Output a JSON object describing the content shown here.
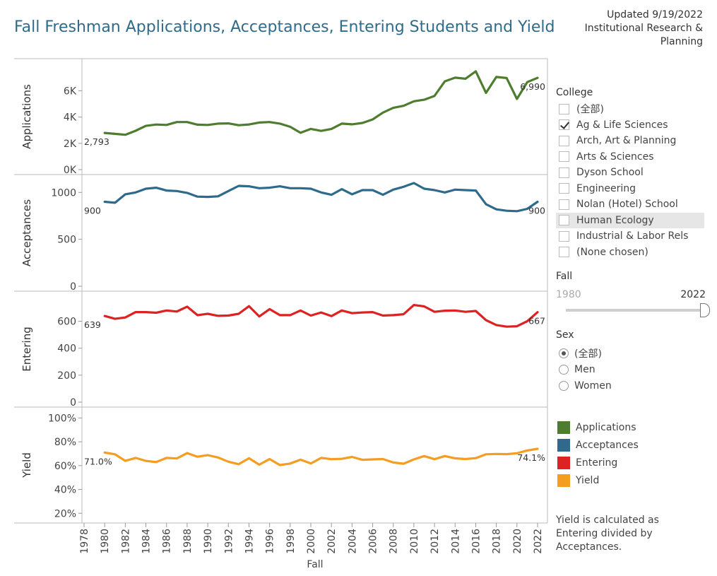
{
  "header": {
    "title": "Fall Freshman Applications, Acceptances, Entering Students and Yield",
    "updated_lines": [
      "Updated 9/19/2022",
      "Institutional Research &",
      "Planning"
    ]
  },
  "filters": {
    "college": {
      "label": "College",
      "options": [
        {
          "label": "(全部)",
          "checked": false
        },
        {
          "label": "Ag & Life Sciences",
          "checked": true
        },
        {
          "label": "Arch, Art & Planning",
          "checked": false
        },
        {
          "label": "Arts & Sciences",
          "checked": false
        },
        {
          "label": "Dyson School",
          "checked": false
        },
        {
          "label": "Engineering",
          "checked": false
        },
        {
          "label": "Nolan (Hotel) School",
          "checked": false
        },
        {
          "label": "Human Ecology",
          "checked": false,
          "hover": true
        },
        {
          "label": "Industrial & Labor Rels",
          "checked": false
        },
        {
          "label": "(None chosen)",
          "checked": false
        }
      ]
    },
    "fall": {
      "label": "Fall",
      "min_label": "1980",
      "max_label": "2022",
      "value": 1
    },
    "sex": {
      "label": "Sex",
      "options": [
        {
          "label": "(全部)",
          "selected": true
        },
        {
          "label": "Men",
          "selected": false
        },
        {
          "label": "Women",
          "selected": false
        }
      ]
    }
  },
  "legend": {
    "items": [
      {
        "label": "Applications",
        "color": "#4e7d2f"
      },
      {
        "label": "Acceptances",
        "color": "#2e6a8c"
      },
      {
        "label": "Entering",
        "color": "#dd2222"
      },
      {
        "label": "Yield",
        "color": "#f49d20"
      }
    ]
  },
  "note": "Yield is calculated as Entering divided by Acceptances.",
  "chart_data": {
    "type": "line",
    "x_label": "Fall",
    "x_ticks": [
      "1978",
      "1980",
      "1982",
      "1984",
      "1986",
      "1988",
      "1990",
      "1992",
      "1994",
      "1996",
      "1998",
      "2000",
      "2002",
      "2004",
      "2006",
      "2008",
      "2010",
      "2012",
      "2014",
      "2016",
      "2018",
      "2020",
      "2022"
    ],
    "x_range": [
      1978,
      2022
    ],
    "x": [
      1980,
      1981,
      1982,
      1983,
      1984,
      1985,
      1986,
      1987,
      1988,
      1989,
      1990,
      1991,
      1992,
      1993,
      1994,
      1995,
      1996,
      1997,
      1998,
      1999,
      2000,
      2001,
      2002,
      2003,
      2004,
      2005,
      2006,
      2007,
      2008,
      2009,
      2010,
      2011,
      2012,
      2013,
      2014,
      2015,
      2016,
      2017,
      2018,
      2019,
      2020,
      2021,
      2022
    ],
    "panels": [
      {
        "name": "Applications",
        "color": "#4e7d2f",
        "y_ticks": [
          "0K",
          "2K",
          "4K",
          "6K"
        ],
        "y_tick_values": [
          0,
          2000,
          4000,
          6000
        ],
        "ylim": [
          0,
          7800
        ],
        "start_label": "2,793",
        "end_label": "6,990",
        "values": [
          2793,
          2720,
          2650,
          2960,
          3330,
          3430,
          3400,
          3620,
          3620,
          3420,
          3400,
          3500,
          3520,
          3380,
          3440,
          3580,
          3620,
          3500,
          3260,
          2800,
          3100,
          2950,
          3100,
          3500,
          3450,
          3550,
          3820,
          4340,
          4700,
          4860,
          5200,
          5320,
          5610,
          6720,
          7000,
          6920,
          7480,
          5840,
          7050,
          6970,
          5380,
          6660,
          6990
        ]
      },
      {
        "name": "Acceptances",
        "color": "#2e6a8c",
        "y_ticks": [
          "0",
          "500",
          "1000"
        ],
        "y_tick_values": [
          0,
          500,
          1000
        ],
        "ylim": [
          0,
          1100
        ],
        "start_label": "900",
        "end_label": "900",
        "values": [
          900,
          890,
          980,
          1000,
          1040,
          1050,
          1020,
          1015,
          995,
          955,
          952,
          958,
          1015,
          1070,
          1065,
          1045,
          1050,
          1065,
          1045,
          1045,
          1040,
          1000,
          975,
          1035,
          980,
          1025,
          1025,
          975,
          1030,
          1060,
          1100,
          1040,
          1025,
          1000,
          1030,
          1025,
          1020,
          875,
          820,
          805,
          800,
          825,
          900
        ]
      },
      {
        "name": "Entering",
        "color": "#dd2222",
        "y_ticks": [
          "0",
          "200",
          "400",
          "600"
        ],
        "y_tick_values": [
          0,
          200,
          400,
          600
        ],
        "ylim": [
          0,
          760
        ],
        "start_label": "639",
        "end_label": "667",
        "values": [
          639,
          618,
          628,
          668,
          668,
          663,
          680,
          672,
          708,
          645,
          655,
          640,
          642,
          655,
          712,
          635,
          690,
          645,
          645,
          680,
          642,
          665,
          638,
          680,
          660,
          665,
          668,
          642,
          645,
          652,
          720,
          710,
          670,
          678,
          680,
          670,
          676,
          608,
          572,
          560,
          563,
          600,
          667
        ]
      },
      {
        "name": "Yield",
        "color": "#f49d20",
        "y_ticks": [
          "20%",
          "40%",
          "60%",
          "80%",
          "100%"
        ],
        "y_tick_values": [
          20,
          40,
          60,
          80,
          100
        ],
        "ylim": [
          16,
          102
        ],
        "start_label": "71.0%",
        "end_label": "74.1%",
        "values": [
          71.0,
          69.5,
          64.0,
          66.5,
          64.0,
          63.0,
          66.5,
          66.0,
          70.5,
          67.5,
          68.8,
          66.8,
          63.3,
          61.2,
          66.2,
          60.8,
          65.5,
          60.5,
          61.7,
          65.0,
          61.8,
          66.5,
          65.4,
          65.7,
          67.3,
          64.9,
          65.2,
          65.5,
          62.6,
          61.6,
          65.2,
          68.0,
          65.4,
          68.0,
          66.1,
          65.5,
          66.3,
          69.5,
          69.8,
          69.6,
          70.4,
          72.7,
          74.1
        ]
      }
    ]
  }
}
